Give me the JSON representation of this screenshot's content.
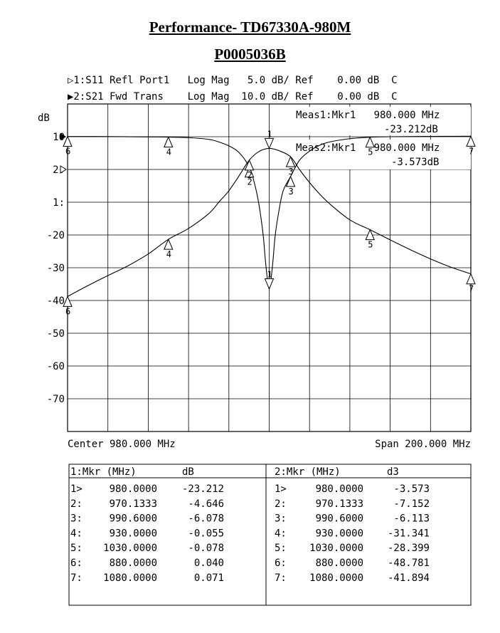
{
  "titles": {
    "line1": "Performance- TD67330A-980M",
    "line2": "P0005036B"
  },
  "header": {
    "trace1": "▷1:S11 Refl Port1   Log Mag   5.0 dB/ Ref    0.00 dB  C",
    "trace2": "▶2:S21 Fwd Trans    Log Mag  10.0 dB/ Ref    0.00 dB  C"
  },
  "readouts": {
    "meas1_label": "Meas1:Mkr1   980.000 MHz",
    "meas1_value": "-23.212dB",
    "meas2_label": "Meas2:Mkr1   980.000 MHz",
    "meas2_value": "-3.573dB"
  },
  "footer": {
    "center": "Center 980.000 MHz",
    "span": "Span 200.000 MHz"
  },
  "table": {
    "left_header": [
      "1:Mkr (MHz)",
      "dB"
    ],
    "right_header": [
      "2:Mkr (MHz)",
      "d3"
    ],
    "left_rows": [
      [
        "1>",
        "980.0000",
        "-23.212"
      ],
      [
        "2:",
        "970.1333",
        "-4.646"
      ],
      [
        "3:",
        "990.6000",
        "-6.078"
      ],
      [
        "4:",
        "930.0000",
        "-0.055"
      ],
      [
        "5:",
        "1030.0000",
        "-0.078"
      ],
      [
        "6:",
        "880.0000",
        "0.040"
      ],
      [
        "7:",
        "1080.0000",
        "0.071"
      ]
    ],
    "right_rows": [
      [
        "1>",
        "980.0000",
        "-3.573"
      ],
      [
        "2:",
        "970.1333",
        "-7.152"
      ],
      [
        "3:",
        "990.6000",
        "-6.113"
      ],
      [
        "4:",
        "930.0000",
        "-31.341"
      ],
      [
        "5:",
        "1030.0000",
        "-28.399"
      ],
      [
        "6:",
        "880.0000",
        "-48.781"
      ],
      [
        "7:",
        "1080.0000",
        "-41.894"
      ]
    ]
  },
  "chart_data": {
    "type": "line",
    "x_unit": "MHz",
    "xlim": [
      880,
      1080
    ],
    "ylabel": "dB",
    "grid": true,
    "y_tick_labels": [
      "dB",
      "10",
      "2:",
      "1:",
      "-20",
      "-30",
      "-40",
      "-50",
      "-60",
      "-70"
    ],
    "s21_ylim": [
      -90,
      10
    ],
    "s11_ylim": [
      -45,
      5
    ],
    "series": [
      {
        "name": "1:S11 Refl Port1",
        "scale": "5.0 dB/",
        "x": [
          880,
          900,
          920,
          930,
          940,
          950,
          955,
          960,
          965,
          970.1333,
          973,
          975,
          977,
          978,
          979,
          980,
          981,
          982,
          983,
          985,
          987,
          990.6,
          995,
          1000,
          1005,
          1010,
          1020,
          1030,
          1040,
          1060,
          1080
        ],
        "y": [
          0.04,
          0.02,
          -0.03,
          -0.055,
          -0.15,
          -0.4,
          -0.8,
          -1.4,
          -2.4,
          -4.646,
          -7.5,
          -10.5,
          -15,
          -18.5,
          -21.5,
          -23.212,
          -21.5,
          -18.5,
          -15,
          -11,
          -8.2,
          -6.078,
          -3.6,
          -2.2,
          -1.3,
          -0.8,
          -0.3,
          -0.078,
          0,
          0.05,
          0.071
        ]
      },
      {
        "name": "2:S21 Fwd Trans",
        "scale": "10.0 dB/",
        "x": [
          880,
          890,
          900,
          910,
          920,
          930,
          940,
          950,
          955,
          960,
          965,
          970.1333,
          975,
          980,
          985,
          990.6,
          995,
          1000,
          1005,
          1010,
          1020,
          1030,
          1040,
          1050,
          1060,
          1070,
          1080
        ],
        "y": [
          -48.781,
          -45.5,
          -42.4,
          -39.4,
          -35.8,
          -31.341,
          -28,
          -23.5,
          -20,
          -16.5,
          -12,
          -7.152,
          -4.5,
          -3.573,
          -4.3,
          -6.113,
          -10,
          -14,
          -17.5,
          -20.5,
          -25.4,
          -28.399,
          -31.5,
          -34.5,
          -37.3,
          -39.8,
          -41.894
        ]
      }
    ],
    "markers": {
      "x": [
        980,
        970.1333,
        990.6,
        930,
        1030,
        880,
        1080
      ],
      "labels": [
        "1",
        "2",
        "3",
        "4",
        "5",
        "6",
        "7"
      ]
    }
  }
}
